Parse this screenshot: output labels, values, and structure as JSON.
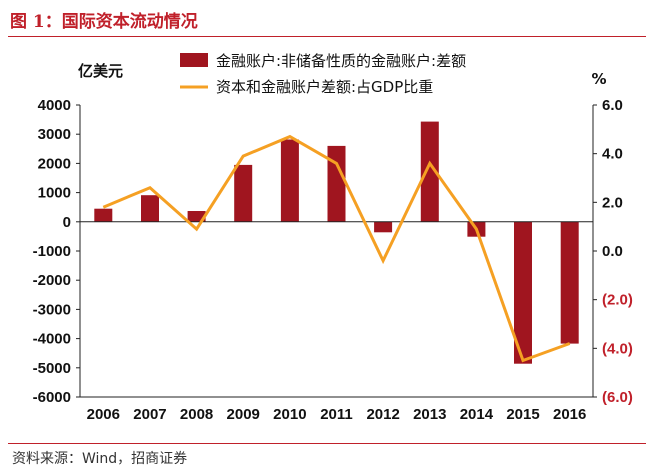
{
  "page_title": "图 1：国际资本流动情况",
  "source": "资料来源：Wind，招商证券",
  "chart_data": {
    "type": "bar",
    "title": "图 1：国际资本流动情况",
    "categories": [
      "2006",
      "2007",
      "2008",
      "2009",
      "2010",
      "2011",
      "2012",
      "2013",
      "2014",
      "2015",
      "2016"
    ],
    "y_left_label": "亿美元",
    "y_right_label": "%",
    "ylim_left": [
      -6000,
      4000
    ],
    "ylim_right": [
      -6.0,
      6.0
    ],
    "y_left_ticks": [
      "4000",
      "3000",
      "2000",
      "1000",
      "0",
      "-1000",
      "-2000",
      "-3000",
      "-4000",
      "-5000",
      "-6000"
    ],
    "y_right_ticks": [
      "6.0",
      "4.0",
      "2.0",
      "0.0",
      "(2.0)",
      "(4.0)",
      "(6.0)"
    ],
    "legend_position": "top",
    "grid": false,
    "series": [
      {
        "name": "金融账户:非储备性质的金融账户:差额",
        "kind": "bar",
        "axis": "left",
        "color": "#a0151f",
        "values": [
          450,
          910,
          370,
          1950,
          2820,
          2600,
          -360,
          3430,
          -510,
          -4860,
          -4170
        ]
      },
      {
        "name": "资本和金融账户差额:占GDP比重",
        "kind": "line",
        "axis": "right",
        "color": "#f5a023",
        "values": [
          1.8,
          2.6,
          0.9,
          3.9,
          4.7,
          3.6,
          -0.4,
          3.6,
          0.9,
          -4.5,
          -3.8
        ]
      }
    ]
  }
}
